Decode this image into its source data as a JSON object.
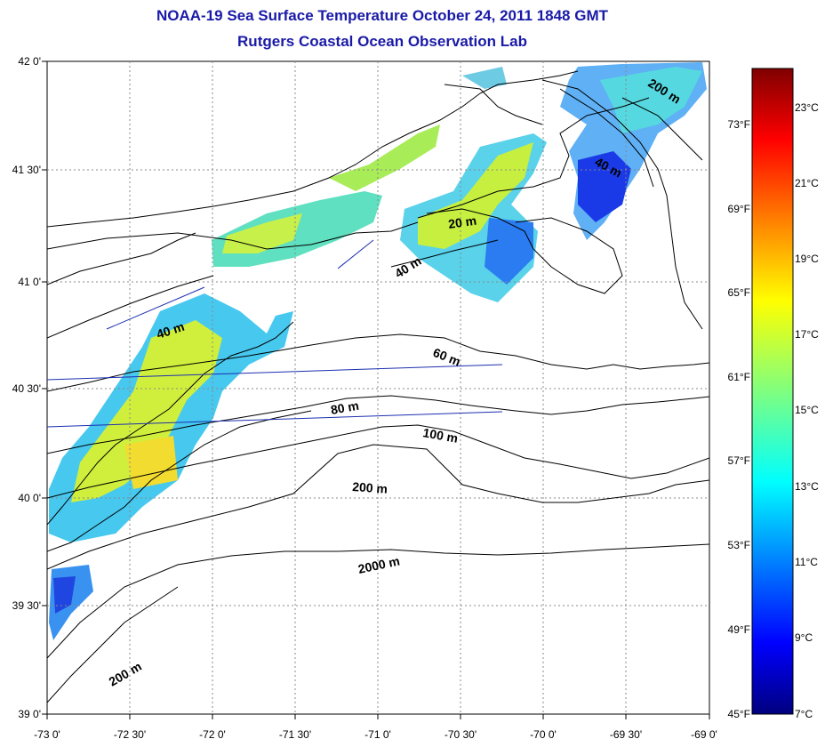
{
  "title": "NOAA-19 Sea Surface Temperature October 24, 2011 1848 GMT",
  "subtitle": "Rutgers Coastal Ocean Observation Lab",
  "lat_labels": [
    "42 0'",
    "41 30'",
    "41 0'",
    "40 30'",
    "40 0'",
    "39 30'",
    "39 0'"
  ],
  "lon_labels": [
    "-73 0'",
    "-72 30'",
    "-72 0'",
    "-71 30'",
    "-71 0'",
    "-70 30'",
    "-70 0'",
    "-69 30'",
    "-69 0'"
  ],
  "depth_labels": {
    "d200_ne": "200 m",
    "d40_ne": "40 m",
    "d20": "20 m",
    "d40_c": "40 m",
    "d40_w": "40 m",
    "d60": "60 m",
    "d80": "80 m",
    "d100": "100 m",
    "d200": "200 m",
    "d2000": "2000 m",
    "d200_sw": "200 m"
  },
  "colorbar": {
    "celsius": [
      "23°C",
      "21°C",
      "19°C",
      "17°C",
      "15°C",
      "13°C",
      "11°C",
      "9°C",
      "7°C"
    ],
    "fahrenheit": [
      "73°F",
      "69°F",
      "65°F",
      "61°F",
      "57°F",
      "53°F",
      "49°F",
      "45°F"
    ],
    "range_c": [
      7,
      24.5
    ]
  },
  "colors": {
    "title": "#1a1aa8",
    "land": "#ffffff",
    "nodata": "#ffffff"
  }
}
